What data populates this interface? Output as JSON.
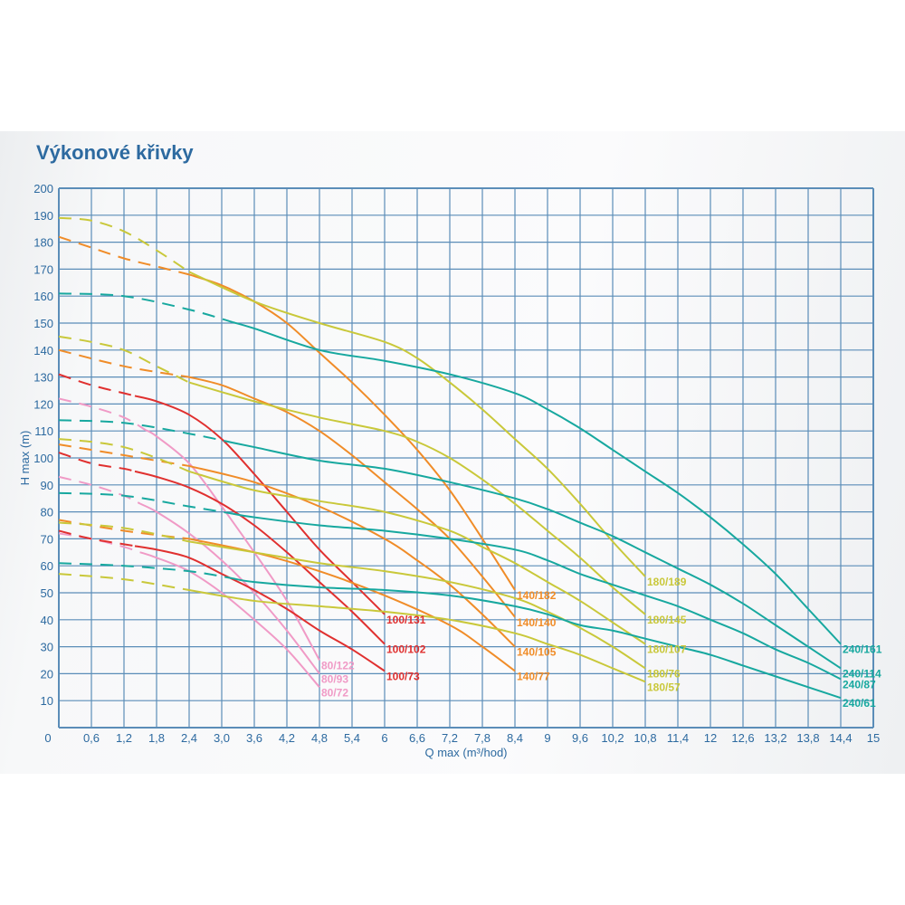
{
  "title": "Výkonové křivky",
  "chart_data": {
    "type": "line",
    "title": "Výkonové křivky",
    "xlabel": "Q max (m³/hod)",
    "ylabel": "H max (m)",
    "xlim": [
      0,
      15
    ],
    "ylim": [
      0,
      200
    ],
    "grid": true,
    "legend": "labels at curve ends",
    "x_ticks": [
      "0",
      "0,6",
      "1,2",
      "1,8",
      "2,4",
      "3,0",
      "3,6",
      "4,2",
      "4,8",
      "5,4",
      "6",
      "6,6",
      "7,2",
      "7,8",
      "8,4",
      "9",
      "9,6",
      "10,2",
      "10,8",
      "11,4",
      "12",
      "12,6",
      "13,2",
      "13,8",
      "14,4",
      "15"
    ],
    "y_ticks": [
      "10",
      "20",
      "30",
      "40",
      "50",
      "60",
      "70",
      "80",
      "90",
      "100",
      "110",
      "120",
      "130",
      "140",
      "150",
      "160",
      "170",
      "180",
      "190",
      "200"
    ],
    "colors": {
      "grid": "#5b8db8",
      "axis_text": "#2d6aa0",
      "pink": "#f09ac6",
      "red": "#e0302f",
      "orange": "#f08c28",
      "yellow": "#c9c83a",
      "teal": "#17a89f"
    },
    "series": [
      {
        "name": "80/122",
        "color": "#f09ac6",
        "dashed_until": 1.6,
        "points": [
          [
            0,
            122
          ],
          [
            0.6,
            119
          ],
          [
            1.2,
            115
          ],
          [
            1.8,
            108
          ],
          [
            2.4,
            98
          ],
          [
            3,
            82
          ],
          [
            3.6,
            65
          ],
          [
            4.2,
            47
          ],
          [
            4.8,
            25
          ]
        ]
      },
      {
        "name": "80/93",
        "color": "#f09ac6",
        "dashed_until": 1.5,
        "points": [
          [
            0,
            93
          ],
          [
            0.6,
            90
          ],
          [
            1.2,
            86
          ],
          [
            1.8,
            80
          ],
          [
            2.4,
            72
          ],
          [
            3,
            62
          ],
          [
            3.6,
            50
          ],
          [
            4.2,
            36
          ],
          [
            4.8,
            20
          ]
        ]
      },
      {
        "name": "80/72",
        "color": "#f09ac6",
        "dashed_until": 1.5,
        "points": [
          [
            0,
            72
          ],
          [
            0.6,
            70
          ],
          [
            1.2,
            67
          ],
          [
            1.8,
            63
          ],
          [
            2.4,
            58
          ],
          [
            3,
            50
          ],
          [
            3.6,
            40
          ],
          [
            4.2,
            29
          ],
          [
            4.8,
            15
          ]
        ]
      },
      {
        "name": "100/131",
        "color": "#e0302f",
        "dashed_until": 1.4,
        "points": [
          [
            0,
            131
          ],
          [
            0.6,
            127
          ],
          [
            1.2,
            124
          ],
          [
            1.8,
            121
          ],
          [
            2.4,
            116
          ],
          [
            3,
            107
          ],
          [
            3.6,
            94
          ],
          [
            4.2,
            80
          ],
          [
            4.8,
            66
          ],
          [
            5.4,
            54
          ],
          [
            6,
            42
          ]
        ]
      },
      {
        "name": "100/102",
        "color": "#e0302f",
        "dashed_until": 1.4,
        "points": [
          [
            0,
            102
          ],
          [
            0.6,
            98
          ],
          [
            1.2,
            96
          ],
          [
            1.8,
            93
          ],
          [
            2.4,
            89
          ],
          [
            3,
            83
          ],
          [
            3.6,
            75
          ],
          [
            4.2,
            65
          ],
          [
            4.8,
            54
          ],
          [
            5.4,
            43
          ],
          [
            6,
            31
          ]
        ]
      },
      {
        "name": "100/73",
        "color": "#e0302f",
        "dashed_until": 1.4,
        "points": [
          [
            0,
            73
          ],
          [
            0.6,
            70
          ],
          [
            1.2,
            68
          ],
          [
            1.8,
            66
          ],
          [
            2.4,
            63
          ],
          [
            3,
            57
          ],
          [
            3.6,
            51
          ],
          [
            4.2,
            44
          ],
          [
            4.8,
            36
          ],
          [
            5.4,
            29
          ],
          [
            6,
            21
          ]
        ]
      },
      {
        "name": "140/182",
        "color": "#f08c28",
        "dashed_until": 2.4,
        "points": [
          [
            0,
            182
          ],
          [
            0.6,
            178
          ],
          [
            1.2,
            174
          ],
          [
            1.8,
            171
          ],
          [
            2.4,
            168
          ],
          [
            3,
            164
          ],
          [
            3.6,
            158
          ],
          [
            4.2,
            150
          ],
          [
            4.8,
            139
          ],
          [
            5.4,
            128
          ],
          [
            6,
            116
          ],
          [
            6.6,
            103
          ],
          [
            7.2,
            88
          ],
          [
            7.8,
            70
          ],
          [
            8.4,
            51
          ]
        ]
      },
      {
        "name": "140/140",
        "color": "#f08c28",
        "dashed_until": 2.4,
        "points": [
          [
            0,
            140
          ],
          [
            1.2,
            134
          ],
          [
            2.4,
            130
          ],
          [
            3,
            127
          ],
          [
            3.6,
            122
          ],
          [
            4.2,
            117
          ],
          [
            4.8,
            110
          ],
          [
            5.4,
            101
          ],
          [
            6,
            91
          ],
          [
            6.6,
            81
          ],
          [
            7.2,
            70
          ],
          [
            7.8,
            56
          ],
          [
            8.4,
            41
          ]
        ]
      },
      {
        "name": "140/105",
        "color": "#f08c28",
        "dashed_until": 2.4,
        "points": [
          [
            0,
            105
          ],
          [
            1.2,
            101
          ],
          [
            2.4,
            97
          ],
          [
            3.6,
            91
          ],
          [
            4.8,
            82
          ],
          [
            6,
            70
          ],
          [
            6.6,
            62
          ],
          [
            7.2,
            53
          ],
          [
            7.8,
            42
          ],
          [
            8.4,
            30
          ]
        ]
      },
      {
        "name": "140/77",
        "color": "#f08c28",
        "dashed_until": 2.4,
        "points": [
          [
            0,
            77
          ],
          [
            1.2,
            73
          ],
          [
            2.4,
            70
          ],
          [
            3.6,
            65
          ],
          [
            4.8,
            58
          ],
          [
            6,
            49
          ],
          [
            7.2,
            38
          ],
          [
            7.8,
            30
          ],
          [
            8.4,
            21
          ]
        ]
      },
      {
        "name": "180/189",
        "color": "#c9c83a",
        "dashed_until": 2.4,
        "points": [
          [
            0,
            189
          ],
          [
            0.6,
            188
          ],
          [
            1.2,
            184
          ],
          [
            1.8,
            177
          ],
          [
            2.4,
            169
          ],
          [
            3.6,
            158
          ],
          [
            4.8,
            150
          ],
          [
            6,
            143
          ],
          [
            6.6,
            137
          ],
          [
            7.2,
            128
          ],
          [
            7.8,
            118
          ],
          [
            8.4,
            107
          ],
          [
            9,
            96
          ],
          [
            9.6,
            83
          ],
          [
            10.2,
            69
          ],
          [
            10.8,
            56
          ]
        ]
      },
      {
        "name": "180/145",
        "color": "#c9c83a",
        "dashed_until": 2.4,
        "points": [
          [
            0,
            145
          ],
          [
            0.6,
            143
          ],
          [
            1.2,
            140
          ],
          [
            1.8,
            134
          ],
          [
            2.4,
            128
          ],
          [
            3.6,
            121
          ],
          [
            4.8,
            115
          ],
          [
            6,
            110
          ],
          [
            6.6,
            106
          ],
          [
            7.2,
            100
          ],
          [
            7.8,
            92
          ],
          [
            8.4,
            83
          ],
          [
            9,
            73
          ],
          [
            9.6,
            63
          ],
          [
            10.2,
            52
          ],
          [
            10.8,
            42
          ]
        ]
      },
      {
        "name": "180/107",
        "color": "#c9c83a",
        "dashed_until": 2.4,
        "points": [
          [
            0,
            107
          ],
          [
            0.6,
            106
          ],
          [
            1.2,
            104
          ],
          [
            1.8,
            100
          ],
          [
            2.4,
            95
          ],
          [
            3.6,
            88
          ],
          [
            4.8,
            84
          ],
          [
            6,
            80
          ],
          [
            7.2,
            73
          ],
          [
            7.8,
            67
          ],
          [
            8.4,
            61
          ],
          [
            9,
            54
          ],
          [
            9.6,
            47
          ],
          [
            10.2,
            39
          ],
          [
            10.8,
            31
          ]
        ]
      },
      {
        "name": "180/76",
        "color": "#c9c83a",
        "dashed_until": 2.4,
        "points": [
          [
            0,
            76
          ],
          [
            1.2,
            74
          ],
          [
            2.4,
            69
          ],
          [
            3.6,
            65
          ],
          [
            4.8,
            61
          ],
          [
            6,
            58
          ],
          [
            7.2,
            54
          ],
          [
            8.4,
            48
          ],
          [
            9,
            43
          ],
          [
            9.6,
            37
          ],
          [
            10.2,
            30
          ],
          [
            10.8,
            22
          ]
        ]
      },
      {
        "name": "180/57",
        "color": "#c9c83a",
        "dashed_until": 2.4,
        "points": [
          [
            0,
            57
          ],
          [
            1.2,
            55
          ],
          [
            2.4,
            51
          ],
          [
            3.6,
            47
          ],
          [
            4.8,
            45
          ],
          [
            6,
            43
          ],
          [
            7.2,
            40
          ],
          [
            8.4,
            35
          ],
          [
            9,
            31
          ],
          [
            9.6,
            27
          ],
          [
            10.2,
            22
          ],
          [
            10.8,
            17
          ]
        ]
      },
      {
        "name": "240/161",
        "color": "#17a89f",
        "dashed_until": 3.2,
        "points": [
          [
            0,
            161
          ],
          [
            1.2,
            160
          ],
          [
            2.4,
            155
          ],
          [
            3.6,
            148
          ],
          [
            4.8,
            140
          ],
          [
            6,
            136
          ],
          [
            7.2,
            131
          ],
          [
            8.4,
            124
          ],
          [
            9,
            118
          ],
          [
            9.6,
            111
          ],
          [
            10.2,
            103
          ],
          [
            10.8,
            95
          ],
          [
            11.4,
            87
          ],
          [
            12,
            78
          ],
          [
            12.6,
            68
          ],
          [
            13.2,
            57
          ],
          [
            13.8,
            44
          ],
          [
            14.4,
            31
          ]
        ]
      },
      {
        "name": "240/114",
        "color": "#17a89f",
        "dashed_until": 3.2,
        "points": [
          [
            0,
            114
          ],
          [
            1.2,
            113
          ],
          [
            2.4,
            109
          ],
          [
            3.6,
            104
          ],
          [
            4.8,
            99
          ],
          [
            6,
            96
          ],
          [
            7.2,
            91
          ],
          [
            8.4,
            85
          ],
          [
            9,
            81
          ],
          [
            9.6,
            76
          ],
          [
            10.2,
            71
          ],
          [
            10.8,
            65
          ],
          [
            11.4,
            59
          ],
          [
            12,
            53
          ],
          [
            12.6,
            46
          ],
          [
            13.2,
            38
          ],
          [
            13.8,
            30
          ],
          [
            14.4,
            22
          ]
        ]
      },
      {
        "name": "240/87",
        "color": "#17a89f",
        "dashed_until": 3.2,
        "points": [
          [
            0,
            87
          ],
          [
            1.2,
            86
          ],
          [
            2.4,
            82
          ],
          [
            3.6,
            78
          ],
          [
            4.8,
            75
          ],
          [
            6,
            73
          ],
          [
            7.2,
            70
          ],
          [
            8.4,
            66
          ],
          [
            9,
            62
          ],
          [
            9.6,
            57
          ],
          [
            10.2,
            53
          ],
          [
            10.8,
            49
          ],
          [
            11.4,
            45
          ],
          [
            12,
            40
          ],
          [
            12.6,
            35
          ],
          [
            13.2,
            29
          ],
          [
            13.8,
            24
          ],
          [
            14.4,
            18
          ]
        ]
      },
      {
        "name": "240/61",
        "color": "#17a89f",
        "dashed_until": 3.2,
        "points": [
          [
            0,
            61
          ],
          [
            1.2,
            60
          ],
          [
            2.4,
            58
          ],
          [
            3.6,
            54
          ],
          [
            4.8,
            52
          ],
          [
            6,
            51
          ],
          [
            7.2,
            49
          ],
          [
            8.4,
            45
          ],
          [
            9,
            42
          ],
          [
            9.6,
            38
          ],
          [
            10.2,
            36
          ],
          [
            10.8,
            33
          ],
          [
            11.4,
            30
          ],
          [
            12,
            27
          ],
          [
            12.6,
            23
          ],
          [
            13.2,
            19
          ],
          [
            13.8,
            15
          ],
          [
            14.4,
            11
          ]
        ]
      }
    ]
  }
}
